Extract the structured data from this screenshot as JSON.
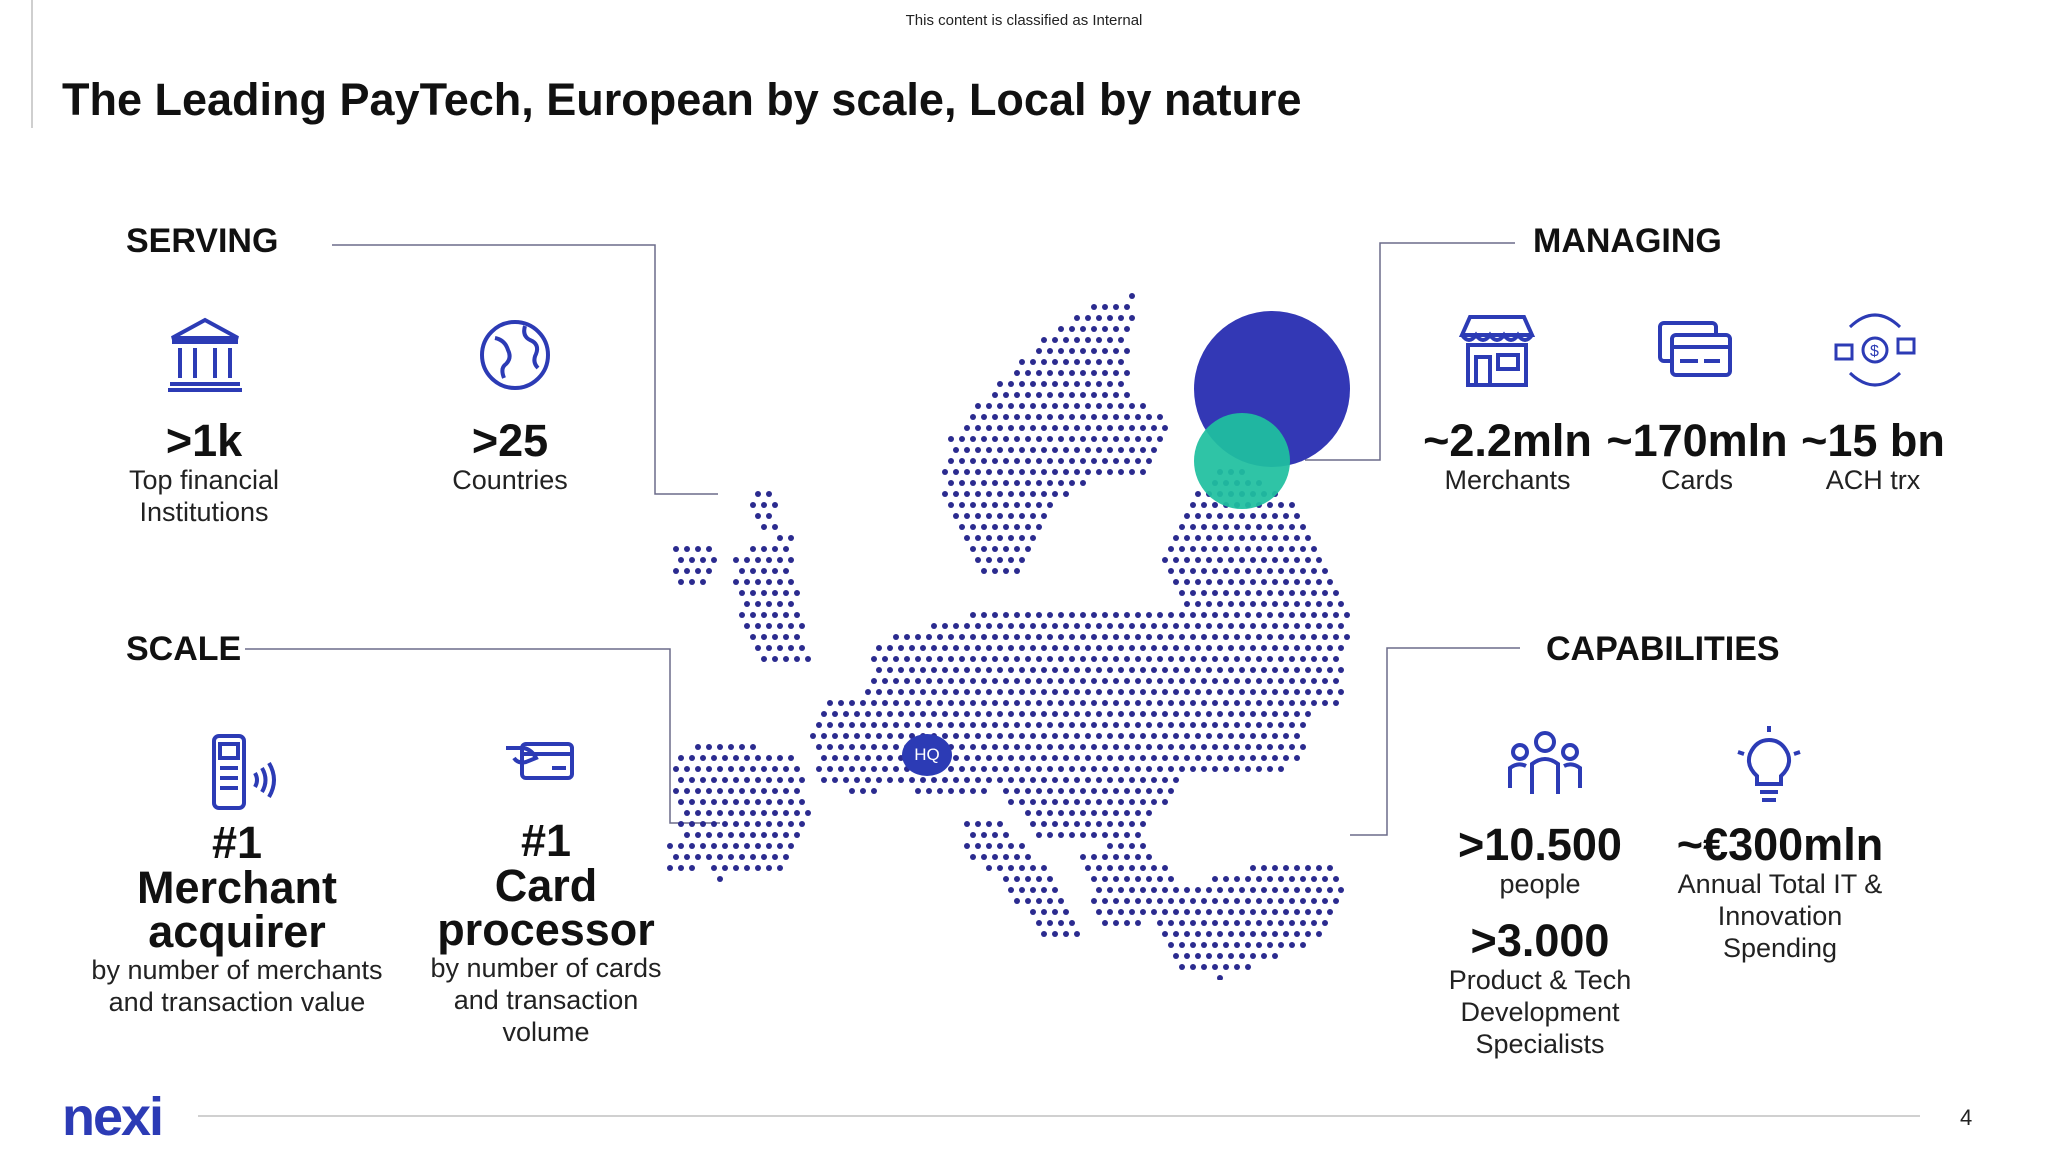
{
  "classification": "This content is classified as Internal",
  "title": "The Leading PayTech, European by scale, Local by nature",
  "sections": {
    "serving": "SERVING",
    "scale": "SCALE",
    "managing": "MANAGING",
    "capabilities": "CAPABILITIES"
  },
  "serving": [
    {
      "value": ">1k",
      "label": "Top financial Institutions",
      "icon": "bank-icon"
    },
    {
      "value": ">25",
      "label": "Countries",
      "icon": "globe-icon"
    }
  ],
  "scale": [
    {
      "value1": "#1",
      "value2": "Merchant acquirer",
      "label": "by number of merchants and transaction value",
      "icon": "pos-terminal-icon"
    },
    {
      "value1": "#1",
      "value2": "Card processor",
      "label": "by number of cards and transaction volume",
      "icon": "card-hand-icon"
    }
  ],
  "managing": [
    {
      "value": "~2.2mln",
      "label": "Merchants",
      "icon": "store-icon"
    },
    {
      "value": "~170mln",
      "label": "Cards",
      "icon": "cards-icon"
    },
    {
      "value": "~15 bn",
      "label": "ACH trx",
      "icon": "bank-transfer-icon"
    }
  ],
  "capabilities": [
    {
      "value": ">10.500",
      "label": "people",
      "icon": "people-icon"
    },
    {
      "value": "~€300mln",
      "label": "Annual Total IT & Innovation Spending",
      "icon": "lightbulb-icon"
    },
    {
      "value": ">3.000",
      "label": "Product & Tech Development Specialists"
    }
  ],
  "map": {
    "hq_label": "HQ"
  },
  "colors": {
    "navy": "#2c3bb5",
    "teal": "#1fbf9f",
    "dots": "#2b2b8f"
  },
  "footer": {
    "logo": "nexi",
    "page": "4"
  }
}
